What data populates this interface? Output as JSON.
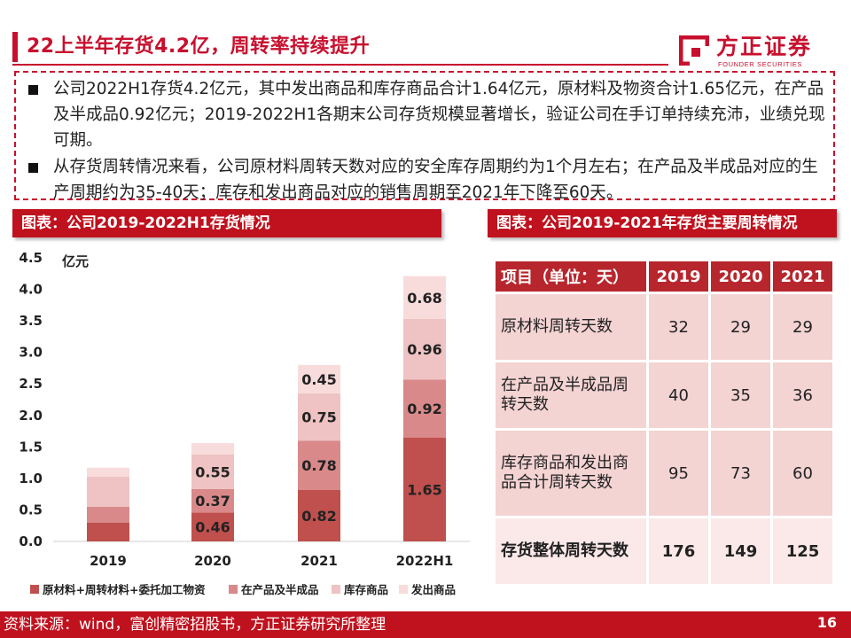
{
  "header": {
    "title": "22上半年存货4.2亿，周转率持续提升",
    "logo_cn": "方正证券",
    "logo_en": "FOUNDER SECURITIES"
  },
  "bullets": [
    "公司2022H1存货4.2亿元，其中发出商品和库存商品合计1.64亿元，原材料及物资合计1.65亿元，在产品及半成品0.92亿元；2019-2022H1各期末公司存货规模显著增长，验证公司在手订单持续充沛，业绩兑现可期。",
    "从存货周转情况来看，公司原材料周转天数对应的安全库存周期约为1个月左右；在产品及半成品对应的生产周期约为35-40天；库存和发出商品对应的销售周期至2021年下降至60天。"
  ],
  "left_section_title": "图表：公司2019-2022H1存货情况",
  "right_section_title": "图表：公司2019-2021年存货主要周转情况",
  "chart_data": {
    "type": "bar",
    "stacked": true,
    "categories": [
      "2019",
      "2020",
      "2021",
      "2022H1"
    ],
    "ylabel": "亿元",
    "ylim": [
      0,
      4.5
    ],
    "yticks": [
      "0.0",
      "0.5",
      "1.0",
      "1.5",
      "2.0",
      "2.5",
      "3.0",
      "3.5",
      "4.0",
      "4.5"
    ],
    "grid": false,
    "legend_position": "bottom",
    "series": [
      {
        "name": "原材料+周转材料+委托加工物资",
        "color": "#c0504d",
        "values": [
          0.3,
          0.46,
          0.82,
          1.65
        ],
        "labels": [
          "",
          "0.46",
          "0.82",
          "1.65"
        ]
      },
      {
        "name": "在产品及半成品",
        "color": "#d9898a",
        "values": [
          0.25,
          0.37,
          0.78,
          0.92
        ],
        "labels": [
          "",
          "0.37",
          "0.78",
          "0.92"
        ]
      },
      {
        "name": "库存商品",
        "color": "#efc3c3",
        "values": [
          0.48,
          0.55,
          0.75,
          0.96
        ],
        "labels": [
          "",
          "0.55",
          "0.75",
          "0.96"
        ]
      },
      {
        "name": "发出商品",
        "color": "#f8dcdc",
        "values": [
          0.14,
          0.18,
          0.45,
          0.68
        ],
        "labels": [
          "",
          "",
          "0.45",
          "0.68"
        ]
      }
    ]
  },
  "table": {
    "headers": [
      "项目（单位：天）",
      "2019",
      "2020",
      "2021"
    ],
    "rows": [
      {
        "label": "原材料周转天数",
        "values": [
          "32",
          "29",
          "29"
        ]
      },
      {
        "label": "在产品及半成品周转天数",
        "values": [
          "40",
          "35",
          "36"
        ]
      },
      {
        "label": "库存商品和发出商品合计周转天数",
        "values": [
          "95",
          "73",
          "60"
        ]
      }
    ],
    "total": {
      "label": "存货整体周转天数",
      "values": [
        "176",
        "149",
        "125"
      ]
    }
  },
  "footer": {
    "source": "资料来源：wind，富创精密招股书，方正证券研究所整理",
    "page": "16"
  },
  "colors": {
    "brand_red": "#c8102e",
    "header_red": "#c0121e",
    "table_header": "#b8262d",
    "table_cell": "#f4d3d3"
  }
}
